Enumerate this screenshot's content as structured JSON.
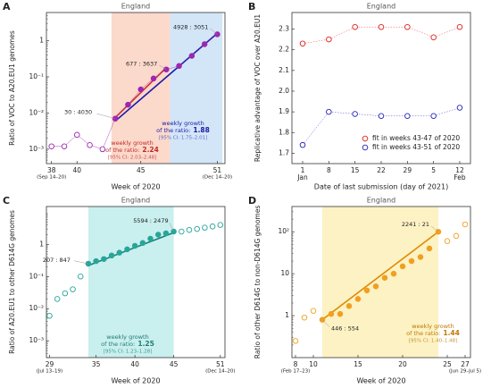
{
  "chart_data": [
    {
      "type": "scatter",
      "panel": "A",
      "title": "England",
      "xlabel": "Week of 2020",
      "ylabel": "Ratio of VOC to A20.EU1 genomes",
      "log_y": true,
      "xlim": [
        37.6,
        51.6
      ],
      "ylim": [
        0.0004,
        6
      ],
      "xticks": [
        38,
        40,
        45,
        51
      ],
      "xtick_notes": [
        {
          "value": 38,
          "label": "(Sep 14–20)"
        },
        {
          "value": 51,
          "label": "(Dec 14–20)"
        }
      ],
      "yticks": [
        {
          "value": 0.001,
          "label": "10⁻³"
        },
        {
          "value": 0.01,
          "label": "10⁻²"
        },
        {
          "value": 0.1,
          "label": "10⁻¹"
        },
        {
          "value": 1,
          "label": "1"
        }
      ],
      "shade": [
        {
          "from": 42.7,
          "to": 47.3,
          "color": "#fbd9cb"
        },
        {
          "from": 47.3,
          "to": 51.4,
          "color": "#d3e6f8"
        }
      ],
      "series": [
        {
          "color": "#9c27b0",
          "connect": true,
          "x": [
            38,
            39,
            40,
            41,
            42,
            43,
            44,
            45,
            46,
            47,
            48,
            49,
            50,
            51
          ],
          "values": [
            0.0012,
            0.0012,
            0.0025,
            0.0013,
            0.001,
            0.007,
            0.017,
            0.045,
            0.09,
            0.16,
            0.2,
            0.38,
            0.8,
            1.5
          ],
          "filled": [
            false,
            false,
            false,
            false,
            false,
            true,
            true,
            true,
            true,
            true,
            true,
            true,
            true,
            true
          ]
        }
      ],
      "fits": [
        {
          "color": "#d32f2f",
          "x": [
            43,
            47
          ],
          "values": [
            0.0075,
            0.18
          ]
        },
        {
          "color": "#1a1aa8",
          "x": [
            43,
            51
          ],
          "values": [
            0.006,
            1.6
          ]
        }
      ],
      "counts": [
        "30 : 4030",
        "677 : 3637",
        "4928 : 3051"
      ],
      "growth": [
        {
          "color": "#1a1aa8",
          "ci_color": "#5a6ac8",
          "lines": [
            "weekly growth",
            "of the ratio:"
          ],
          "value": 1.88,
          "ci": "[95% CI: 1.75–2.01]"
        },
        {
          "color": "#c62828",
          "ci_color": "#c85050",
          "lines": [
            "weekly growth",
            "of the ratio:"
          ],
          "value": 2.24,
          "ci": "[95% CI: 2.03–2.48]"
        }
      ]
    },
    {
      "type": "line",
      "panel": "B",
      "title": "England",
      "xlabel": "Date of last submission (day of 2021)",
      "ylabel": "Replicative advantage of VOC over A20.EU1",
      "categories": [
        "1",
        "8",
        "15",
        "22",
        "29",
        "5",
        "12"
      ],
      "category_notes": [
        "Jan",
        null,
        null,
        null,
        null,
        null,
        "Feb"
      ],
      "ylim": [
        1.65,
        2.38
      ],
      "yticks": [
        1.7,
        1.8,
        1.9,
        {
          "value": 2,
          "label": "2.0"
        },
        2.1,
        2.2,
        2.3
      ],
      "legend": "lower right",
      "series": [
        {
          "name": "fit in weeks 43-47 of 2020",
          "color": "#e0201a",
          "values": [
            2.23,
            2.25,
            2.31,
            2.31,
            2.31,
            2.26,
            2.31
          ]
        },
        {
          "name": "fit in weeks 43-51 of 2020",
          "color": "#2020c0",
          "values": [
            1.74,
            1.9,
            1.89,
            1.88,
            1.88,
            1.88,
            1.92
          ]
        }
      ]
    },
    {
      "type": "scatter",
      "panel": "C",
      "title": "England",
      "xlabel": "Week of 2020",
      "ylabel": "Ratio of A20.EU1 to other D614G genomes",
      "log_y": true,
      "xlim": [
        28.6,
        51.6
      ],
      "ylim": [
        0.0003,
        15
      ],
      "xticks": [
        29,
        35,
        40,
        45,
        51
      ],
      "xtick_notes": [
        {
          "value": 29,
          "label": "(Jul 13–19)"
        },
        {
          "value": 51,
          "label": "(Dec 14–20)"
        }
      ],
      "yticks": [
        {
          "value": 0.001,
          "label": "10⁻³"
        },
        {
          "value": 0.01,
          "label": "10⁻²"
        },
        {
          "value": 0.1,
          "label": "10⁻¹"
        },
        {
          "value": 1,
          "label": "1"
        }
      ],
      "shade": [
        {
          "from": 34,
          "to": 45,
          "color": "#c9efee"
        }
      ],
      "series": [
        {
          "color": "#26a69a",
          "connect": false,
          "x": [
            29,
            30,
            31,
            32,
            33,
            34,
            35,
            36,
            37,
            38,
            39,
            40,
            41,
            42,
            43,
            44,
            45,
            46,
            47,
            48,
            49,
            50,
            51
          ],
          "values": [
            0.006,
            0.02,
            0.03,
            0.04,
            0.1,
            0.25,
            0.3,
            0.35,
            0.45,
            0.55,
            0.7,
            0.9,
            1.1,
            1.5,
            2,
            2.2,
            2.5,
            2.5,
            2.8,
            3,
            3.3,
            3.6,
            4
          ],
          "filled": [
            false,
            false,
            false,
            false,
            false,
            true,
            true,
            true,
            true,
            true,
            true,
            true,
            true,
            true,
            true,
            true,
            true,
            false,
            false,
            false,
            false,
            false,
            false
          ]
        }
      ],
      "fits": [
        {
          "color": "#1e7d74",
          "x": [
            34,
            45
          ],
          "values": [
            0.22,
            2.3
          ]
        }
      ],
      "counts": [
        "207 : 847",
        "5594 : 2479"
      ],
      "growth": [
        {
          "color": "#1e7d74",
          "ci_color": "#3a9a90",
          "lines": [
            "weekly growth",
            "of the ratio:"
          ],
          "value": 1.25,
          "ci": "[95% CI: 1.23–1.28]"
        }
      ]
    },
    {
      "type": "scatter",
      "panel": "D",
      "title": "England",
      "xlabel": "Week of 2020",
      "ylabel": "Ratio of other D614G to non-D614G genomes",
      "log_y": true,
      "xlim": [
        7.6,
        27.6
      ],
      "ylim": [
        0.1,
        400
      ],
      "xticks": [
        8,
        10,
        15,
        20,
        25,
        27
      ],
      "xtick_notes": [
        {
          "value": 8,
          "label": "(Feb 17–23)"
        },
        {
          "value": 27,
          "label": "(Jun 29–Jul 5)"
        }
      ],
      "yticks": [
        1,
        10,
        {
          "value": 100,
          "label": "10²"
        }
      ],
      "shade": [
        {
          "from": 11,
          "to": 24,
          "color": "#fcf2c4"
        }
      ],
      "series": [
        {
          "color": "#f0a020",
          "connect": false,
          "x": [
            8,
            9,
            10,
            11,
            12,
            13,
            14,
            15,
            16,
            17,
            18,
            19,
            20,
            21,
            22,
            23,
            24,
            25,
            26,
            27
          ],
          "values": [
            0.25,
            0.9,
            1.3,
            0.8,
            1.1,
            1.1,
            1.7,
            2.5,
            4,
            5,
            8,
            10,
            15,
            20,
            25,
            40,
            100,
            60,
            80,
            150
          ],
          "filled": [
            false,
            false,
            false,
            true,
            true,
            true,
            true,
            true,
            true,
            true,
            true,
            true,
            true,
            true,
            true,
            true,
            true,
            false,
            false,
            false
          ]
        }
      ],
      "fits": [
        {
          "color": "#e08a00",
          "x": [
            11,
            24
          ],
          "values": [
            0.8,
            100
          ]
        }
      ],
      "counts": [
        "446 : 554",
        "2241 : 21"
      ],
      "growth": [
        {
          "color": "#c07800",
          "ci_color": "#c89030",
          "lines": [
            "weekly growth",
            "of the ratio:"
          ],
          "value": 1.44,
          "ci": "[95% CI: 1.40–1.48]"
        }
      ]
    }
  ]
}
